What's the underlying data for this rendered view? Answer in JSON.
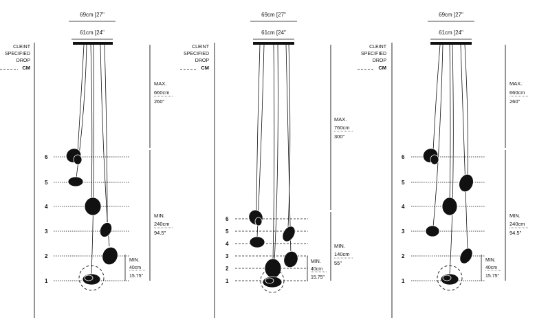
{
  "panels": [
    {
      "width_outer": "69cm [27\"",
      "width_inner": "61cm [24\"",
      "client_drop": [
        "CLEINT",
        "SPECIFIED",
        "DROP"
      ],
      "client_drop_unit": "CM",
      "max_label": "MAX.",
      "max_cm": "660cm",
      "max_in": "260\"",
      "min_label": "MIN.",
      "min_cm": "240cm",
      "min_in": "94.5\"",
      "small_min_label": "MIN.",
      "small_min_cm": "40cm",
      "small_min_in": "15.75\"",
      "levels": [
        "6",
        "5",
        "4",
        "3",
        "2",
        "1"
      ]
    },
    {
      "width_outer": "69cm [27\"",
      "width_inner": "61cm [24\"",
      "client_drop": [
        "CLEINT",
        "SPECIFIED",
        "DROP"
      ],
      "client_drop_unit": "CM",
      "max_label": "MAX.",
      "max_cm": "760cm",
      "max_in": "300\"",
      "min_label": "MIN.",
      "min_cm": "140cm",
      "min_in": "55\"",
      "small_min_label": "MIN.",
      "small_min_cm": "40cm",
      "small_min_in": "15.75\"",
      "levels": [
        "6",
        "5",
        "4",
        "3",
        "2",
        "1"
      ]
    },
    {
      "width_outer": "69cm [27\"",
      "width_inner": "61cm [24\"",
      "client_drop": [
        "CLEINT",
        "SPECIFIED",
        "DROP"
      ],
      "client_drop_unit": "CM",
      "max_label": "MAX.",
      "max_cm": "660cm",
      "max_in": "260\"",
      "min_label": "MIN.",
      "min_cm": "240cm",
      "min_in": "94.5\"",
      "small_min_label": "MIN.",
      "small_min_cm": "40cm",
      "small_min_in": "15.75\"",
      "levels": [
        "6",
        "5",
        "4",
        "3",
        "2",
        "1"
      ]
    }
  ]
}
